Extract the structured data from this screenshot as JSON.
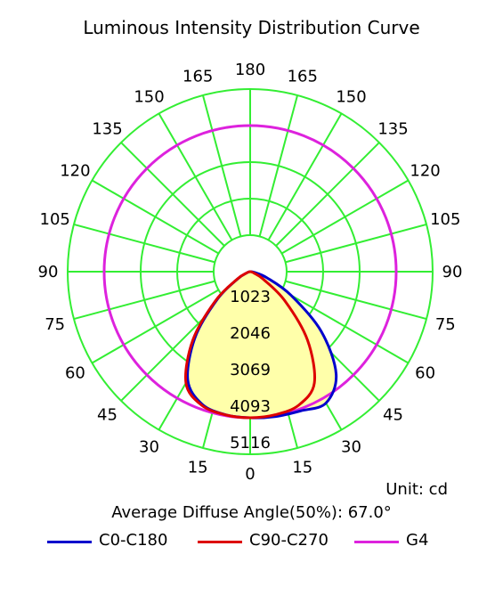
{
  "title": "Luminous Intensity Distribution Curve",
  "unit_text": "Unit: cd",
  "average_text": "Average Diffuse Angle(50%): 67.0°",
  "colors": {
    "grid": "#33ee33",
    "c0": "#0000cc",
    "c90": "#dd0000",
    "g4": "#dd22dd",
    "fill": "#ffffaa"
  },
  "chart_data": {
    "type": "polar",
    "title": "Luminous Intensity Distribution Curve",
    "unit": "cd",
    "radial_ticks": [
      1023,
      2046,
      3069,
      4093,
      5116
    ],
    "r_max": 5116,
    "left_angle_labels": [
      "180",
      "165",
      "150",
      "135",
      "120",
      "105",
      "90",
      "75",
      "60",
      "45",
      "30",
      "15",
      "0"
    ],
    "right_angle_labels": [
      "165",
      "150",
      "135",
      "120",
      "105",
      "90",
      "75",
      "60",
      "45",
      "30",
      "15"
    ],
    "series": [
      {
        "name": "C0-C180",
        "color": "#0000cc",
        "left_angles": [
          0,
          10,
          20,
          30,
          40,
          50,
          60,
          70,
          80,
          90
        ],
        "left_values": [
          4093,
          4065,
          3950,
          3500,
          2400,
          1200,
          400,
          100,
          30,
          0
        ],
        "right_angles": [
          0,
          10,
          20,
          30,
          40,
          50,
          60,
          70,
          80,
          90
        ],
        "right_values": [
          4093,
          4120,
          4150,
          4250,
          3750,
          2600,
          1320,
          500,
          120,
          0
        ]
      },
      {
        "name": "C90-C270",
        "color": "#dd0000",
        "left_angles": [
          0,
          10,
          20,
          30,
          40,
          50,
          60,
          70,
          80,
          90
        ],
        "left_values": [
          4093,
          4070,
          3980,
          3600,
          2500,
          1270,
          430,
          110,
          30,
          0
        ],
        "right_angles": [
          0,
          10,
          20,
          30,
          40,
          50,
          60,
          70,
          80,
          90
        ],
        "right_values": [
          4093,
          4070,
          3980,
          3600,
          2500,
          1270,
          430,
          110,
          30,
          0
        ]
      },
      {
        "name": "G4",
        "color": "#dd22dd",
        "constant_value": 4093
      }
    ]
  },
  "legend": [
    {
      "label": "C0-C180",
      "color": "#0000cc"
    },
    {
      "label": "C90-C270",
      "color": "#dd0000"
    },
    {
      "label": "G4",
      "color": "#dd22dd"
    }
  ]
}
